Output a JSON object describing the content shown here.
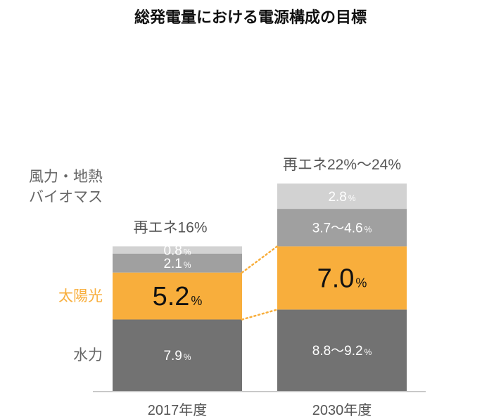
{
  "chart_data": {
    "type": "bar",
    "stacked": true,
    "title": "総発電量における電源構成の目標",
    "categories": [
      "2017年度",
      "2030年度"
    ],
    "totals": [
      "再エネ16%",
      "再エネ22%～24%"
    ],
    "series": [
      {
        "name": "水力",
        "color": "#727272",
        "values": [
          7.9,
          9.0
        ],
        "labels": [
          "7.9",
          "8.8～9.2"
        ]
      },
      {
        "name": "太陽光",
        "color": "#f8ae3c",
        "values": [
          5.2,
          7.0
        ],
        "labels": [
          "5.2",
          "7.0"
        ]
      },
      {
        "name": "風力・地熱",
        "name2": "バイオマス",
        "color": "#a0a0a0",
        "values": [
          2.1,
          4.15
        ],
        "labels": [
          "2.1",
          "3.7～4.6"
        ]
      },
      {
        "name": "",
        "color": "#d2d2d2",
        "values": [
          0.8,
          2.8
        ],
        "labels": [
          "0.8",
          "2.8"
        ]
      }
    ],
    "unit": "%",
    "legend_color_solar": "#f8ae3c",
    "connector_color": "#f8ae3c",
    "ylim": [
      0,
      24
    ]
  }
}
